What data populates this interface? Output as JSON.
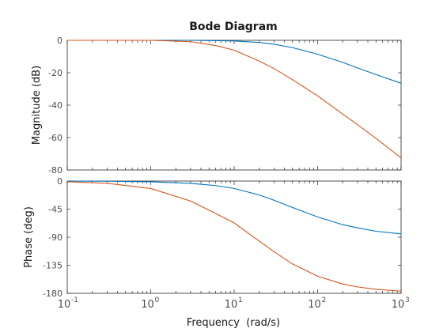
{
  "chart_data": {
    "type": "line",
    "title": "Bode Diagram",
    "xlabel": "Frequency  (rad/s)",
    "x_scale": "log",
    "xlim": [
      0.1,
      1000
    ],
    "x_ticks": [
      0.1,
      1,
      10,
      100,
      1000
    ],
    "x_tick_labels": [
      {
        "base": "10",
        "exp": "-1"
      },
      {
        "base": "10",
        "exp": "0"
      },
      {
        "base": "10",
        "exp": "1"
      },
      {
        "base": "10",
        "exp": "2"
      },
      {
        "base": "10",
        "exp": "3"
      }
    ],
    "grid": false,
    "legend": "none",
    "x": [
      0.1,
      0.3,
      1,
      3,
      6,
      10,
      20,
      30,
      50,
      100,
      200,
      300,
      500,
      1000
    ],
    "panels": [
      {
        "name": "magnitude",
        "ylabel": "Magnitude (dB)",
        "ylim": [
          -80,
          0
        ],
        "yticks": [
          0,
          -20,
          -40,
          -60,
          -80
        ],
        "series": [
          {
            "color": "#0072bd",
            "values": [
              0,
              0,
              0,
              0,
              -0.2,
              -0.4,
              -1.3,
              -2.4,
              -4.5,
              -8.6,
              -13.6,
              -17.0,
              -21.1,
              -26.5
            ]
          },
          {
            "color": "#d95319",
            "values": [
              0,
              0,
              0,
              -0.8,
              -3.2,
              -6.1,
              -12.8,
              -17.4,
              -24.3,
              -34.3,
              -45.5,
              -52.0,
              -60.5,
              -72.5
            ]
          }
        ]
      },
      {
        "name": "phase",
        "ylabel": "Phase (deg)",
        "ylim": [
          -180,
          0
        ],
        "yticks": [
          0,
          -45,
          -90,
          -135,
          -180
        ],
        "series": [
          {
            "color": "#0072bd",
            "values": [
              -0.1,
              -0.3,
              -1.2,
              -3.7,
              -7.3,
              -11.9,
              -22.3,
              -30.7,
              -42.4,
              -57.5,
              -70.0,
              -75.0,
              -80.5,
              -84.7
            ]
          },
          {
            "color": "#d95319",
            "values": [
              -1.2,
              -3.6,
              -12.0,
              -32.0,
              -52.0,
              -67.2,
              -96.4,
              -113.2,
              -133.0,
              -152.6,
              -165.2,
              -169.7,
              -173.6,
              -176.5
            ]
          }
        ]
      }
    ]
  }
}
